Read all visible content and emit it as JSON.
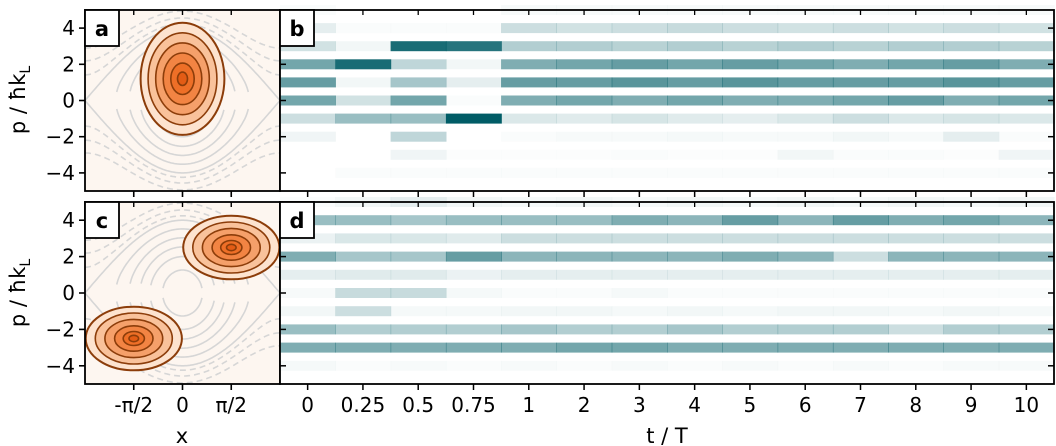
{
  "figure": {
    "panel_labels": [
      "a",
      "b",
      "c",
      "d"
    ],
    "ylabel_main": "p / ħk",
    "ylabel_sub": "L",
    "xlabel_phase": "x",
    "xlabel_time": "t / T"
  },
  "chart_data": [
    {
      "type": "contour",
      "panel": "a",
      "xlabel": "x",
      "ylabel": "p / ħk_L",
      "x_tick_labels": [
        "-π/2",
        "0",
        "π/2"
      ],
      "x_ticks": [
        -1.5708,
        0,
        1.5708
      ],
      "xlim": [
        -3.1416,
        3.1416
      ],
      "ylim": [
        -5,
        5
      ],
      "y_ticks": [
        -4,
        -2,
        0,
        2,
        4
      ],
      "y_tick_labels": [
        "−4",
        "−2",
        "0",
        "2",
        "4"
      ],
      "distributions": [
        {
          "cx": 0,
          "cy": 1.2,
          "rx": 1.35,
          "ry": 3.1
        }
      ],
      "contour_levels": [
        1.0,
        0.82,
        0.64,
        0.46,
        0.28,
        0.12
      ],
      "fill_color": "#f07d2d",
      "line_color": "#8c3d0a",
      "background": "#fdf6f0"
    },
    {
      "type": "heatmap",
      "panel": "b",
      "xlabel": "t / T",
      "x_tick_labels": [
        "0",
        "0.25",
        "0.5",
        "0.75",
        "1",
        "2",
        "3",
        "4",
        "5",
        "6",
        "7",
        "8",
        "9",
        "10"
      ],
      "ylim": [
        -5,
        5
      ],
      "y_ticks": [
        -4,
        -2,
        0,
        2,
        4
      ],
      "p_values": [
        -5,
        -4,
        -3,
        -2,
        -1,
        0,
        1,
        2,
        3,
        4,
        5
      ],
      "color": "#005c66",
      "values": [
        [
          0,
          0,
          0,
          0,
          0,
          0,
          0,
          0,
          0,
          0,
          0,
          0,
          0,
          0
        ],
        [
          0,
          0.02,
          0.02,
          0.02,
          0.02,
          0.02,
          0.02,
          0.02,
          0.02,
          0.02,
          0.02,
          0.02,
          0.02,
          0.02
        ],
        [
          0,
          0,
          0.06,
          0.01,
          0.01,
          0.01,
          0.02,
          0.01,
          0.01,
          0.05,
          0.02,
          0.02,
          0.01,
          0.06
        ],
        [
          0.06,
          0,
          0.25,
          0,
          0.02,
          0.03,
          0.03,
          0.04,
          0.03,
          0.03,
          0.05,
          0.03,
          0.1,
          0.02
        ],
        [
          0.2,
          0.4,
          0.4,
          1.0,
          0.14,
          0.12,
          0.16,
          0.12,
          0.1,
          0.14,
          0.2,
          0.14,
          0.16,
          0.14
        ],
        [
          0.55,
          0.18,
          0.55,
          0.02,
          0.5,
          0.55,
          0.5,
          0.55,
          0.5,
          0.5,
          0.55,
          0.6,
          0.5,
          0.55
        ],
        [
          0.6,
          0.05,
          0.35,
          0.1,
          0.6,
          0.6,
          0.65,
          0.6,
          0.65,
          0.6,
          0.6,
          0.6,
          0.65,
          0.6
        ],
        [
          0.55,
          0.9,
          0.25,
          0.05,
          0.5,
          0.55,
          0.6,
          0.55,
          0.6,
          0.55,
          0.5,
          0.55,
          0.6,
          0.5
        ],
        [
          0.18,
          0.05,
          0.9,
          0.85,
          0.3,
          0.3,
          0.28,
          0.3,
          0.28,
          0.3,
          0.28,
          0.3,
          0.3,
          0.28
        ],
        [
          0.1,
          0.02,
          0.02,
          0.02,
          0.2,
          0.18,
          0.2,
          0.22,
          0.2,
          0.18,
          0.2,
          0.18,
          0.2,
          0.18
        ],
        [
          0.02,
          0,
          0,
          0,
          0.03,
          0.03,
          0.03,
          0.03,
          0.03,
          0.03,
          0.03,
          0.03,
          0.03,
          0.03
        ]
      ]
    },
    {
      "type": "contour",
      "panel": "c",
      "xlabel": "x",
      "ylabel": "p / ħk_L",
      "x_tick_labels": [
        "-π/2",
        "0",
        "π/2"
      ],
      "x_ticks": [
        -1.5708,
        0,
        1.5708
      ],
      "xlim": [
        -3.1416,
        3.1416
      ],
      "ylim": [
        -5,
        5
      ],
      "y_ticks": [
        -4,
        -2,
        0,
        2,
        4
      ],
      "y_tick_labels": [
        "−4",
        "−2",
        "0",
        "2",
        "4"
      ],
      "distributions": [
        {
          "cx": 1.5708,
          "cy": 2.5,
          "rx": 1.55,
          "ry": 1.75
        },
        {
          "cx": -1.5708,
          "cy": -2.5,
          "rx": 1.55,
          "ry": 1.75
        }
      ],
      "contour_levels": [
        1.0,
        0.8,
        0.6,
        0.4,
        0.22,
        0.1
      ],
      "fill_color": "#f07d2d",
      "line_color": "#8c3d0a",
      "background": "#fdf6f0"
    },
    {
      "type": "heatmap",
      "panel": "d",
      "xlabel": "t / T",
      "x_tick_labels": [
        "0",
        "0.25",
        "0.5",
        "0.75",
        "1",
        "2",
        "3",
        "4",
        "5",
        "6",
        "7",
        "8",
        "9",
        "10"
      ],
      "ylim": [
        -5,
        5
      ],
      "y_ticks": [
        -4,
        -2,
        0,
        2,
        4
      ],
      "p_values": [
        -5,
        -4,
        -3,
        -2,
        -1,
        0,
        1,
        2,
        3,
        4,
        5
      ],
      "color": "#005c66",
      "values": [
        [
          0,
          0,
          0,
          0,
          0,
          0,
          0,
          0,
          0,
          0,
          0,
          0,
          0,
          0
        ],
        [
          0.04,
          0.02,
          0.03,
          0.02,
          0.03,
          0.02,
          0.03,
          0.02,
          0.03,
          0.02,
          0.03,
          0.02,
          0.03,
          0.03
        ],
        [
          0.5,
          0.5,
          0.5,
          0.5,
          0.5,
          0.55,
          0.55,
          0.5,
          0.5,
          0.5,
          0.5,
          0.5,
          0.5,
          0.5
        ],
        [
          0.4,
          0.3,
          0.3,
          0.3,
          0.35,
          0.3,
          0.3,
          0.35,
          0.3,
          0.3,
          0.3,
          0.2,
          0.3,
          0.3
        ],
        [
          0.05,
          0.2,
          0.04,
          0.04,
          0.05,
          0.05,
          0.04,
          0.05,
          0.04,
          0.05,
          0.05,
          0.04,
          0.05,
          0.04
        ],
        [
          0.03,
          0.22,
          0.22,
          0.04,
          0.02,
          0.02,
          0.04,
          0.02,
          0.02,
          0.02,
          0.02,
          0.02,
          0.02,
          0.02
        ],
        [
          0.1,
          0.12,
          0.12,
          0.08,
          0.1,
          0.1,
          0.1,
          0.1,
          0.1,
          0.1,
          0.1,
          0.1,
          0.1,
          0.1
        ],
        [
          0.5,
          0.35,
          0.35,
          0.6,
          0.45,
          0.45,
          0.45,
          0.45,
          0.5,
          0.45,
          0.2,
          0.45,
          0.45,
          0.45
        ],
        [
          0.08,
          0.15,
          0.15,
          0.12,
          0.2,
          0.2,
          0.2,
          0.2,
          0.2,
          0.2,
          0.2,
          0.2,
          0.2,
          0.2
        ],
        [
          0.4,
          0.4,
          0.35,
          0.4,
          0.4,
          0.4,
          0.5,
          0.45,
          0.6,
          0.45,
          0.6,
          0.5,
          0.55,
          0.45
        ],
        [
          0.02,
          0.05,
          0.1,
          0.05,
          0.04,
          0.05,
          0.04,
          0.05,
          0.04,
          0.05,
          0.04,
          0.05,
          0.04,
          0.05
        ]
      ]
    }
  ]
}
